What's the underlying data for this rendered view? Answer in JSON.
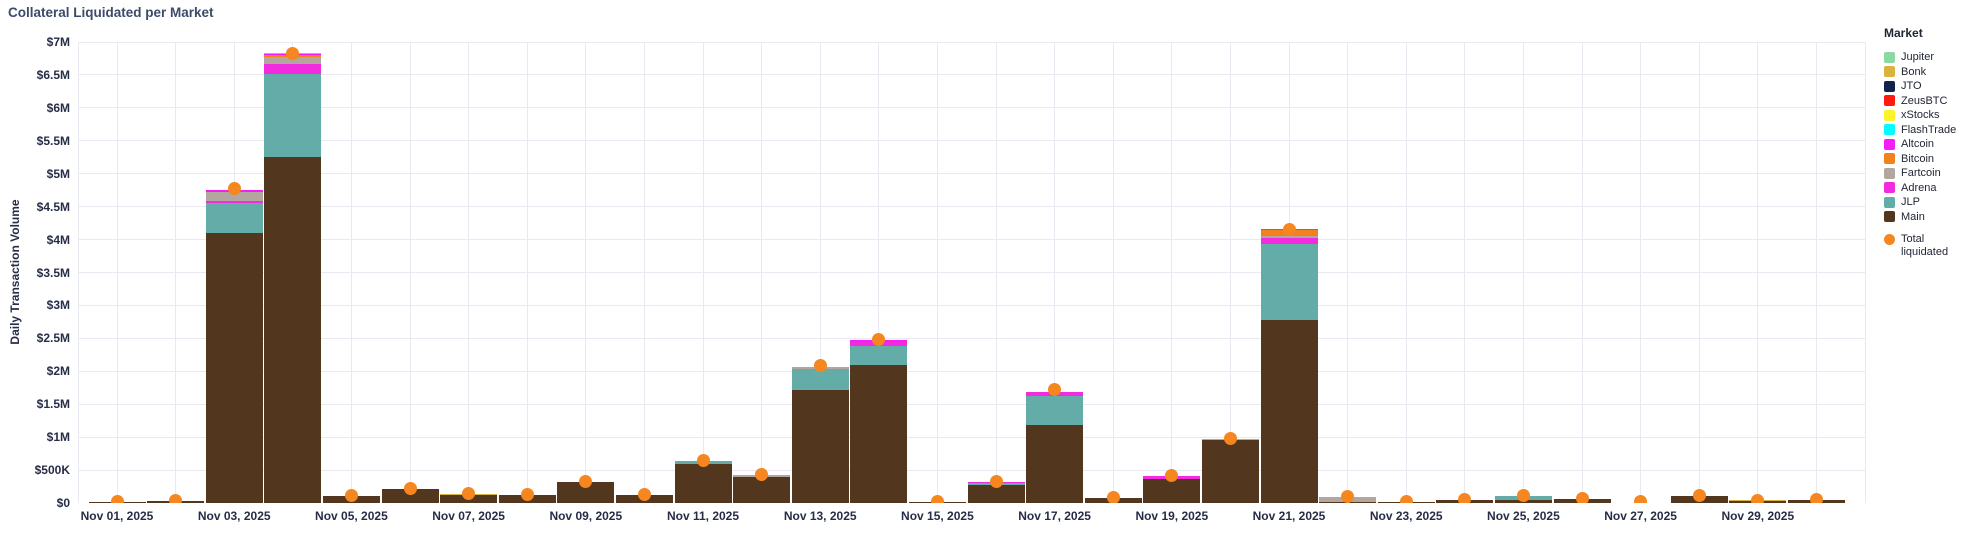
{
  "title": "Collateral Liquidated per Market",
  "y_axis": {
    "title": "Daily Transaction Volume",
    "ticks": [
      {
        "label": "$0",
        "value": 0
      },
      {
        "label": "$500K",
        "value": 500000
      },
      {
        "label": "$1M",
        "value": 1000000
      },
      {
        "label": "$1.5M",
        "value": 1500000
      },
      {
        "label": "$2M",
        "value": 2000000
      },
      {
        "label": "$2.5M",
        "value": 2500000
      },
      {
        "label": "$3M",
        "value": 3000000
      },
      {
        "label": "$3.5M",
        "value": 3500000
      },
      {
        "label": "$4M",
        "value": 4000000
      },
      {
        "label": "$4.5M",
        "value": 4500000
      },
      {
        "label": "$5M",
        "value": 5000000
      },
      {
        "label": "$5.5M",
        "value": 5500000
      },
      {
        "label": "$6M",
        "value": 6000000
      },
      {
        "label": "$6.5M",
        "value": 6500000
      },
      {
        "label": "$7M",
        "value": 7000000
      }
    ]
  },
  "x_axis": {
    "tick_labels": [
      "Nov 01, 2025",
      "Nov 03, 2025",
      "Nov 05, 2025",
      "Nov 07, 2025",
      "Nov 09, 2025",
      "Nov 11, 2025",
      "Nov 13, 2025",
      "Nov 15, 2025",
      "Nov 17, 2025",
      "Nov 19, 2025",
      "Nov 21, 2025",
      "Nov 23, 2025",
      "Nov 25, 2025",
      "Nov 27, 2025",
      "Nov 29, 2025"
    ]
  },
  "legend": {
    "title": "Market",
    "items": [
      {
        "name": "Jupiter",
        "color": "#8cd9a4"
      },
      {
        "name": "Bonk",
        "color": "#d9b33c"
      },
      {
        "name": "JTO",
        "color": "#10234a"
      },
      {
        "name": "ZeusBTC",
        "color": "#ff1910"
      },
      {
        "name": "xStocks",
        "color": "#fcf32a"
      },
      {
        "name": "FlashTrade",
        "color": "#00fdff"
      },
      {
        "name": "Altcoin",
        "color": "#f51df5"
      },
      {
        "name": "Bitcoin",
        "color": "#f0811e"
      },
      {
        "name": "Fartcoin",
        "color": "#b3a69e"
      },
      {
        "name": "Adrena",
        "color": "#f32ae0"
      },
      {
        "name": "JLP",
        "color": "#63aca8"
      },
      {
        "name": "Main",
        "color": "#52361d"
      }
    ],
    "total_label": "Total liquidated",
    "total_color": "#f6861f"
  },
  "chart_data": {
    "type": "bar",
    "stacked": true,
    "title": "Collateral Liquidated per Market",
    "xlabel": "",
    "ylabel": "Daily Transaction Volume",
    "ylim": [
      0,
      7000000
    ],
    "grid": true,
    "legend_position": "right",
    "unit": "USD",
    "categories": [
      "Nov 01, 2025",
      "Nov 02, 2025",
      "Nov 03, 2025",
      "Nov 04, 2025",
      "Nov 05, 2025",
      "Nov 06, 2025",
      "Nov 07, 2025",
      "Nov 08, 2025",
      "Nov 09, 2025",
      "Nov 10, 2025",
      "Nov 11, 2025",
      "Nov 12, 2025",
      "Nov 13, 2025",
      "Nov 14, 2025",
      "Nov 15, 2025",
      "Nov 16, 2025",
      "Nov 17, 2025",
      "Nov 18, 2025",
      "Nov 19, 2025",
      "Nov 20, 2025",
      "Nov 21, 2025",
      "Nov 22, 2025",
      "Nov 23, 2025",
      "Nov 24, 2025",
      "Nov 25, 2025",
      "Nov 26, 2025",
      "Nov 27, 2025",
      "Nov 28, 2025",
      "Nov 29, 2025",
      "Nov 30, 2025"
    ],
    "series": [
      {
        "name": "Main",
        "values": [
          20000,
          25000,
          4100000,
          5250000,
          110000,
          210000,
          120000,
          120000,
          320000,
          115000,
          600000,
          400000,
          1710000,
          2100000,
          10000,
          280000,
          1190000,
          70000,
          370000,
          950000,
          2780000,
          10000,
          10000,
          40000,
          50000,
          60000,
          5000,
          100000,
          30000,
          40000
        ]
      },
      {
        "name": "JLP",
        "values": [
          0,
          0,
          450000,
          1270000,
          0,
          0,
          0,
          0,
          0,
          0,
          35000,
          0,
          330000,
          280000,
          0,
          20000,
          440000,
          0,
          0,
          0,
          1150000,
          0,
          0,
          0,
          50000,
          0,
          0,
          0,
          0,
          0
        ]
      },
      {
        "name": "Adrena",
        "values": [
          0,
          0,
          30000,
          150000,
          0,
          0,
          0,
          0,
          0,
          0,
          0,
          0,
          0,
          70000,
          0,
          15000,
          60000,
          0,
          40000,
          0,
          90000,
          0,
          0,
          0,
          0,
          0,
          0,
          0,
          0,
          0
        ]
      },
      {
        "name": "Fartcoin",
        "values": [
          0,
          0,
          150000,
          100000,
          0,
          0,
          0,
          0,
          0,
          0,
          0,
          20000,
          30000,
          0,
          0,
          0,
          0,
          0,
          0,
          20000,
          40000,
          80000,
          0,
          0,
          0,
          0,
          0,
          0,
          0,
          0
        ]
      },
      {
        "name": "Bitcoin",
        "values": [
          0,
          0,
          0,
          30000,
          0,
          0,
          0,
          0,
          0,
          0,
          0,
          0,
          0,
          0,
          0,
          0,
          0,
          0,
          0,
          0,
          90000,
          0,
          0,
          0,
          0,
          0,
          0,
          0,
          0,
          0
        ]
      },
      {
        "name": "Altcoin",
        "values": [
          0,
          0,
          30000,
          15000,
          0,
          0,
          0,
          0,
          0,
          0,
          0,
          0,
          0,
          20000,
          0,
          0,
          0,
          0,
          0,
          0,
          10000,
          0,
          0,
          0,
          0,
          0,
          0,
          0,
          0,
          0
        ]
      },
      {
        "name": "FlashTrade",
        "values": [
          0,
          0,
          0,
          25000,
          0,
          0,
          0,
          0,
          0,
          0,
          0,
          0,
          0,
          0,
          0,
          0,
          0,
          0,
          0,
          0,
          0,
          0,
          0,
          0,
          0,
          0,
          0,
          0,
          0,
          0
        ]
      },
      {
        "name": "xStocks",
        "values": [
          0,
          0,
          0,
          0,
          0,
          0,
          0,
          0,
          0,
          0,
          0,
          0,
          0,
          0,
          0,
          0,
          0,
          0,
          0,
          0,
          0,
          0,
          0,
          0,
          0,
          0,
          0,
          0,
          0,
          0
        ]
      },
      {
        "name": "ZeusBTC",
        "values": [
          0,
          0,
          0,
          0,
          0,
          0,
          0,
          0,
          0,
          0,
          0,
          0,
          0,
          0,
          0,
          0,
          0,
          0,
          0,
          0,
          0,
          0,
          0,
          0,
          0,
          0,
          0,
          0,
          0,
          0
        ]
      },
      {
        "name": "JTO",
        "values": [
          0,
          0,
          0,
          0,
          0,
          0,
          0,
          0,
          0,
          0,
          0,
          0,
          0,
          0,
          0,
          0,
          0,
          0,
          0,
          0,
          0,
          0,
          0,
          0,
          0,
          0,
          0,
          0,
          0,
          0
        ]
      },
      {
        "name": "Bonk",
        "values": [
          0,
          0,
          0,
          0,
          0,
          0,
          15000,
          0,
          0,
          0,
          0,
          0,
          0,
          0,
          0,
          0,
          0,
          0,
          0,
          0,
          0,
          0,
          0,
          0,
          0,
          0,
          0,
          0,
          10000,
          0
        ]
      },
      {
        "name": "Jupiter",
        "values": [
          0,
          0,
          0,
          0,
          0,
          0,
          0,
          0,
          0,
          0,
          0,
          0,
          0,
          0,
          0,
          0,
          0,
          0,
          0,
          0,
          0,
          0,
          0,
          0,
          0,
          0,
          0,
          0,
          0,
          0
        ]
      }
    ],
    "overlay_series": {
      "name": "Total liquidated",
      "type": "scatter",
      "marker_color": "#f6861f",
      "values": [
        30000,
        35000,
        4780000,
        6830000,
        120000,
        220000,
        140000,
        130000,
        330000,
        125000,
        650000,
        430000,
        2090000,
        2480000,
        20000,
        330000,
        1720000,
        90000,
        420000,
        980000,
        4150000,
        100000,
        20000,
        50000,
        120000,
        70000,
        20000,
        110000,
        45000,
        50000
      ]
    }
  }
}
